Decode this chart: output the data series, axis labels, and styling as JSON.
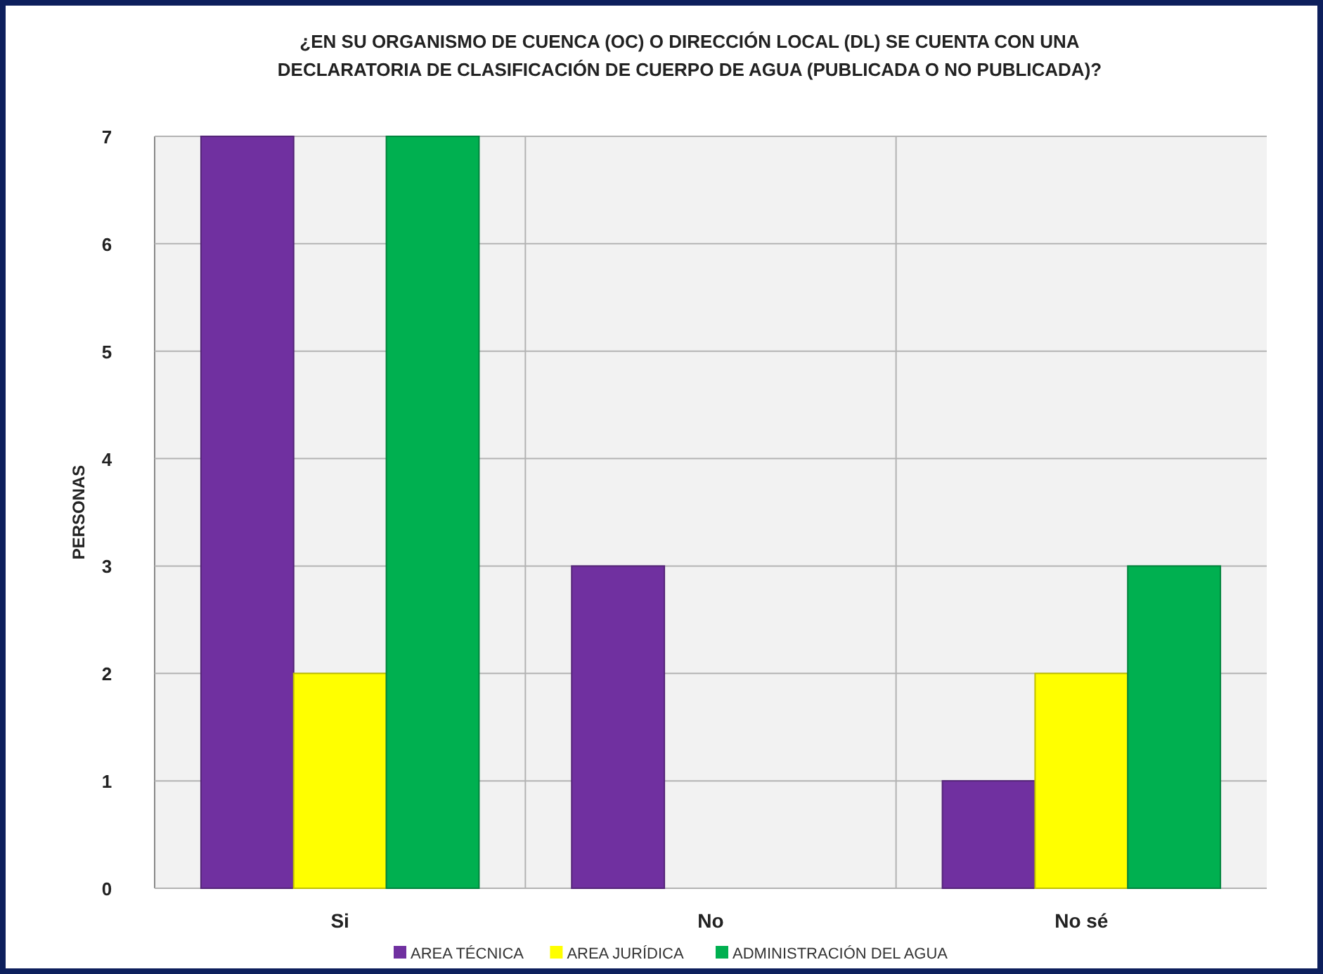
{
  "chart_data": {
    "type": "bar",
    "title": "¿EN SU ORGANISMO DE CUENCA (OC) O DIRECCIÓN LOCAL (DL) SE CUENTA CON UNA DECLARATORIA DE CLASIFICACIÓN DE CUERPO DE AGUA (PUBLICADA O NO PUBLICADA)?",
    "ylabel": "PERSONAS",
    "categories": [
      "Si",
      "No",
      "No sé"
    ],
    "series": [
      {
        "name": "AREA TÉCNICA",
        "color": "#7030a0",
        "values": [
          7,
          3,
          1
        ]
      },
      {
        "name": "AREA JURÍDICA",
        "color": "#ffff00",
        "values": [
          2,
          0,
          2
        ]
      },
      {
        "name": "ADMINISTRACIÓN DEL AGUA",
        "color": "#00b050",
        "values": [
          7,
          0,
          3
        ]
      }
    ],
    "ylim": [
      0,
      7
    ],
    "yticks": [
      0,
      1,
      2,
      3,
      4,
      5,
      6,
      7
    ],
    "grid": true,
    "legend": "bottom"
  }
}
